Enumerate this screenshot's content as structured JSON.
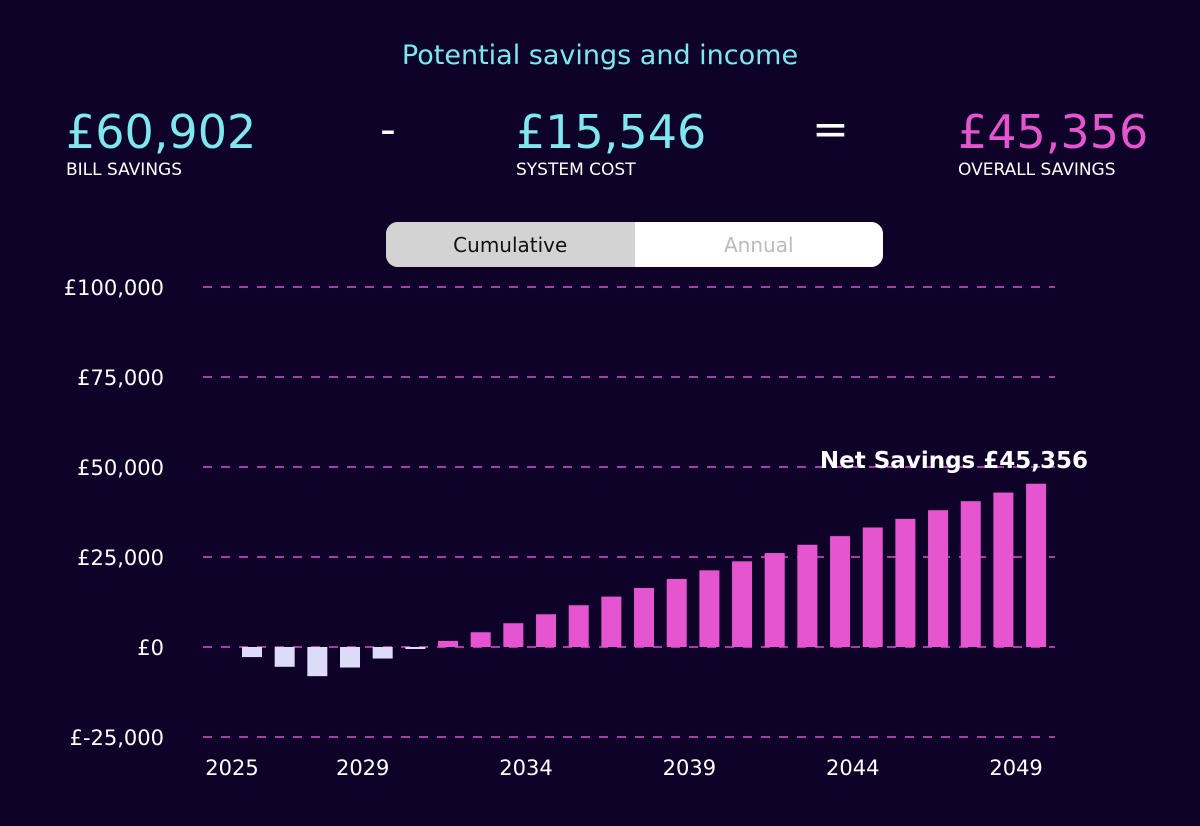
{
  "title": "Potential savings and income",
  "summary": {
    "bill_savings": {
      "value": "£60,902",
      "label": "BILL SAVINGS"
    },
    "minus": "-",
    "system_cost": {
      "value": "£15,546",
      "label": "SYSTEM COST"
    },
    "equals": "=",
    "overall_savings": {
      "value": "£45,356",
      "label": "OVERALL SAVINGS"
    }
  },
  "toggle": {
    "options": [
      "Cumulative",
      "Annual"
    ],
    "selected": "Cumulative"
  },
  "colors": {
    "background": "#0e0228",
    "accent_cyan": "#7ee7ef",
    "accent_pink": "#e555d0",
    "negative_bar": "#dcdcf8"
  },
  "chart_data": {
    "type": "bar",
    "title": "",
    "xlabel": "",
    "ylabel": "",
    "ylim": [
      -25000,
      100000
    ],
    "yticks": [
      -25000,
      0,
      25000,
      50000,
      75000,
      100000
    ],
    "ytick_labels": [
      "£-25,000",
      "£0",
      "£25,000",
      "£50,000",
      "£75,000",
      "£100,000"
    ],
    "xtick_labels": [
      "2025",
      "2029",
      "2034",
      "2039",
      "2044",
      "2049"
    ],
    "grid": "horizontal dashed",
    "annotation": "Net Savings £45,356",
    "categories": [
      2025,
      2026,
      2027,
      2028,
      2029,
      2030,
      2031,
      2032,
      2033,
      2034,
      2035,
      2036,
      2037,
      2038,
      2039,
      2040,
      2041,
      2042,
      2043,
      2044,
      2045,
      2046,
      2047,
      2048,
      2049
    ],
    "values": [
      -2800,
      -5500,
      -8100,
      -5700,
      -3200,
      -500,
      1700,
      4100,
      6600,
      9100,
      11600,
      14000,
      16400,
      18900,
      21300,
      23800,
      26100,
      28400,
      30800,
      33200,
      35600,
      38000,
      40500,
      42900,
      45356
    ]
  }
}
